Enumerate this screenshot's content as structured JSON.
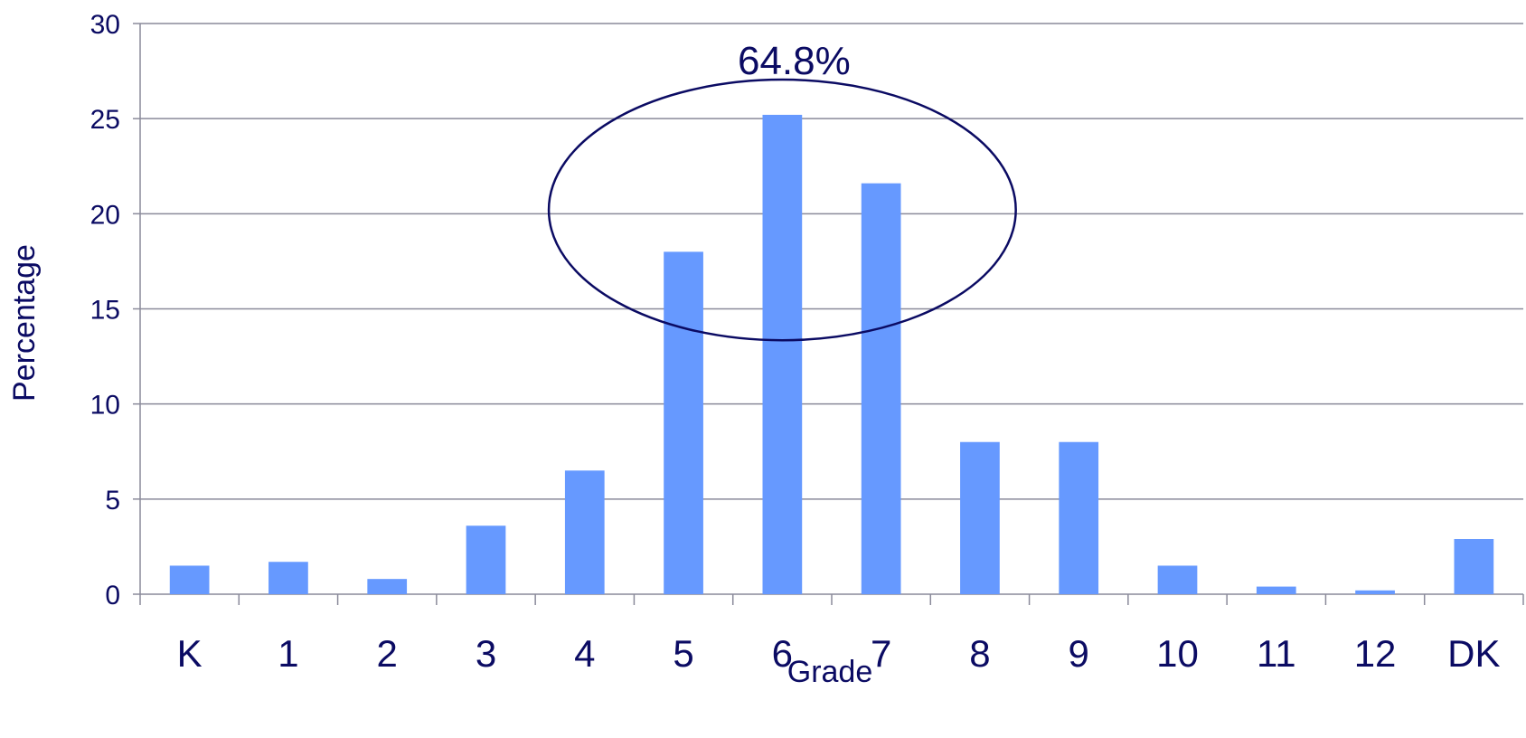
{
  "chart_data": {
    "type": "bar",
    "title": "",
    "xlabel": "Grade",
    "ylabel": "Percentage",
    "ylim": [
      0,
      30
    ],
    "yticks": [
      0,
      5,
      10,
      15,
      20,
      25,
      30
    ],
    "grid": true,
    "categories": [
      "K",
      "1",
      "2",
      "3",
      "4",
      "5",
      "6",
      "7",
      "8",
      "9",
      "10",
      "11",
      "12",
      "DK"
    ],
    "values": [
      1.5,
      1.7,
      0.8,
      3.6,
      6.5,
      18.0,
      25.2,
      21.6,
      8.0,
      8.0,
      1.5,
      0.4,
      0.2,
      2.9
    ],
    "annotations": [
      {
        "text": "64.8%",
        "encircles": [
          "5",
          "6",
          "7"
        ]
      }
    ],
    "colors": {
      "bar": "#6699ff",
      "text": "#0b0b63",
      "grid": "#8a8a9a",
      "axis": "#8a8a9a",
      "ellipse": "#0b0b63"
    }
  }
}
